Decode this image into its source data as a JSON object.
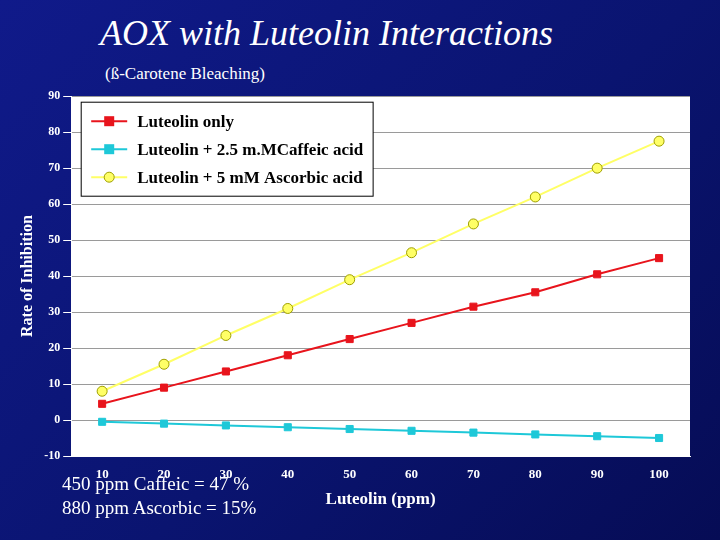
{
  "chart_data": {
    "type": "line",
    "title": "AOX with Luteolin Interactions",
    "subtitle": "(ß-Carotene Bleaching)",
    "x_label": "Luteolin (ppm)",
    "y_label": "Rate of Inhibition",
    "categories": [
      10,
      20,
      30,
      40,
      50,
      60,
      70,
      80,
      90,
      100
    ],
    "series": [
      {
        "name": "Luteolin only",
        "color": "#e8141c",
        "marker": "square",
        "line_style": "solid",
        "values": [
          4.5,
          9,
          13.5,
          18,
          22.5,
          27,
          31.5,
          35.5,
          40.5,
          45
        ]
      },
      {
        "name": "Luteolin + 2.5 m.MCaffeic acid",
        "color": "#1ec8d8",
        "marker": "square",
        "line_style": "solid",
        "values": [
          -0.5,
          -1,
          -1.5,
          -2,
          -2.5,
          -3,
          -3.5,
          -4,
          -4.5,
          -5
        ]
      },
      {
        "name": "Luteolin + 5 mM Ascorbic acid",
        "color": "#ffff66",
        "marker": "circle",
        "line_style": "solid",
        "values": [
          8,
          15.5,
          23.5,
          31,
          39,
          46.5,
          54.5,
          62,
          70,
          77.5
        ]
      }
    ],
    "ylim": [
      -10,
      90
    ],
    "yticks": [
      -10,
      0,
      10,
      20,
      30,
      40,
      50,
      60,
      70,
      80,
      90
    ],
    "grid": true,
    "legend": "upper left",
    "annotations": [
      "450 ppm Caffeic = 47 %",
      "880 ppm Ascorbic = 15%"
    ]
  }
}
